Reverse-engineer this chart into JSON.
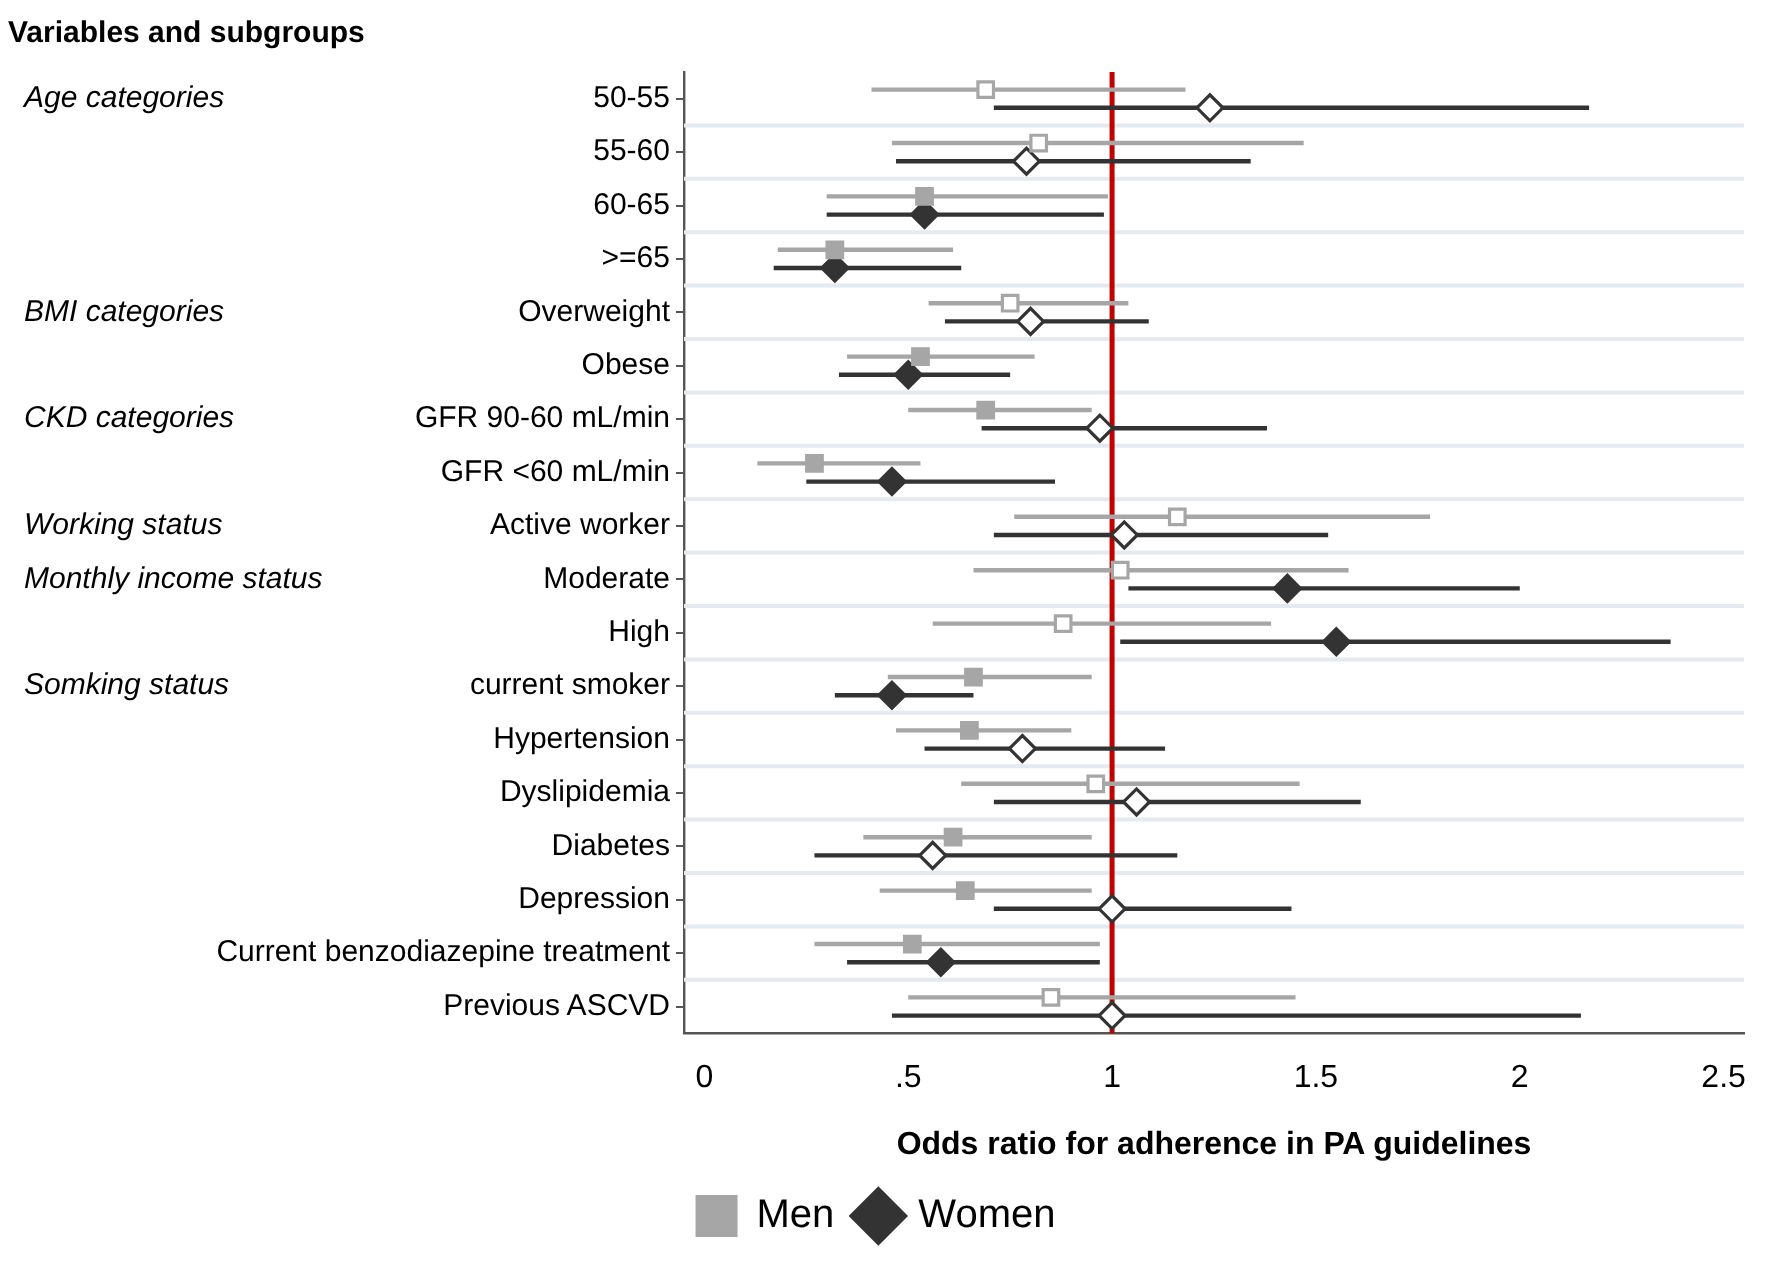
{
  "chart_data": {
    "type": "scatter",
    "orientation": "horizontal",
    "title": "Variables and subgroups",
    "xlabel": "Odds ratio for adherence in PA guidelines",
    "categories": [
      "50-55",
      "55-60",
      "60-65",
      ">=65",
      "Overweight",
      "Obese",
      "GFR 90-60 mL/min",
      "GFR <60 mL/min",
      "Active worker",
      "Moderate",
      "High",
      "current smoker",
      "Hypertension",
      "Dyslipidemia",
      "Diabetes",
      "Depression",
      "Current benzodiazepine treatment",
      "Previous ASCVD"
    ],
    "series": [
      {
        "name": "Men",
        "color": "#a6a6a6",
        "marker": "square",
        "values": [
          0.69,
          0.82,
          0.54,
          0.32,
          0.75,
          0.53,
          0.69,
          0.27,
          1.16,
          1.02,
          0.88,
          0.66,
          0.65,
          0.96,
          0.61,
          0.64,
          0.51,
          0.85
        ],
        "colors": [
          "#ffffff",
          "#ffffff",
          "#a6a6a6",
          "#a6a6a6",
          "#ffffff",
          "#a6a6a6",
          "#a6a6a6",
          "#a6a6a6",
          "#ffffff",
          "#ffffff",
          "#ffffff",
          "#a6a6a6",
          "#a6a6a6",
          "#ffffff",
          "#a6a6a6",
          "#a6a6a6",
          "#a6a6a6",
          "#ffffff"
        ],
        "errors": [
          [
            0.41,
            1.18
          ],
          [
            0.46,
            1.47
          ],
          [
            0.3,
            0.99
          ],
          [
            0.18,
            0.61
          ],
          [
            0.55,
            1.04
          ],
          [
            0.35,
            0.81
          ],
          [
            0.5,
            0.95
          ],
          [
            0.13,
            0.53
          ],
          [
            0.76,
            1.78
          ],
          [
            0.66,
            1.58
          ],
          [
            0.56,
            1.39
          ],
          [
            0.45,
            0.95
          ],
          [
            0.47,
            0.9
          ],
          [
            0.63,
            1.46
          ],
          [
            0.39,
            0.95
          ],
          [
            0.43,
            0.95
          ],
          [
            0.27,
            0.97
          ],
          [
            0.5,
            1.45
          ]
        ]
      },
      {
        "name": "Women",
        "color": "#333333",
        "marker": "diamond",
        "values": [
          1.24,
          0.79,
          0.54,
          0.32,
          0.8,
          0.5,
          0.97,
          0.46,
          1.03,
          1.43,
          1.55,
          0.46,
          0.78,
          1.06,
          0.56,
          1.0,
          0.58,
          1.0
        ],
        "colors": [
          "#ffffff",
          "#ffffff",
          "#333333",
          "#333333",
          "#ffffff",
          "#333333",
          "#ffffff",
          "#333333",
          "#ffffff",
          "#333333",
          "#333333",
          "#333333",
          "#ffffff",
          "#ffffff",
          "#ffffff",
          "#ffffff",
          "#333333",
          "#ffffff"
        ],
        "errors": [
          [
            0.71,
            2.17
          ],
          [
            0.47,
            1.34
          ],
          [
            0.3,
            0.98
          ],
          [
            0.17,
            0.63
          ],
          [
            0.59,
            1.09
          ],
          [
            0.33,
            0.75
          ],
          [
            0.68,
            1.38
          ],
          [
            0.25,
            0.86
          ],
          [
            0.71,
            1.53
          ],
          [
            1.04,
            2.0
          ],
          [
            1.02,
            2.37
          ],
          [
            0.32,
            0.66
          ],
          [
            0.54,
            1.13
          ],
          [
            0.71,
            1.61
          ],
          [
            0.27,
            1.16
          ],
          [
            0.71,
            1.44
          ],
          [
            0.35,
            0.97
          ],
          [
            0.46,
            2.15
          ]
        ]
      }
    ],
    "xlim": [
      -0.05,
      2.55
    ],
    "xticks": [
      0,
      {
        "value": 0.5,
        "label": ".5"
      },
      1,
      1.5,
      2,
      2.5
    ],
    "ref_lines": [
      {
        "axis": "x",
        "value": 1,
        "color": "#c00000"
      }
    ],
    "annotations": [
      "Age categories",
      null,
      null,
      null,
      "BMI categories",
      null,
      "CKD categories",
      null,
      "Working status",
      "Monthly income status",
      null,
      "Somking status",
      null,
      null,
      null,
      null,
      null,
      null
    ],
    "grid": "y",
    "legend": "bottom"
  }
}
